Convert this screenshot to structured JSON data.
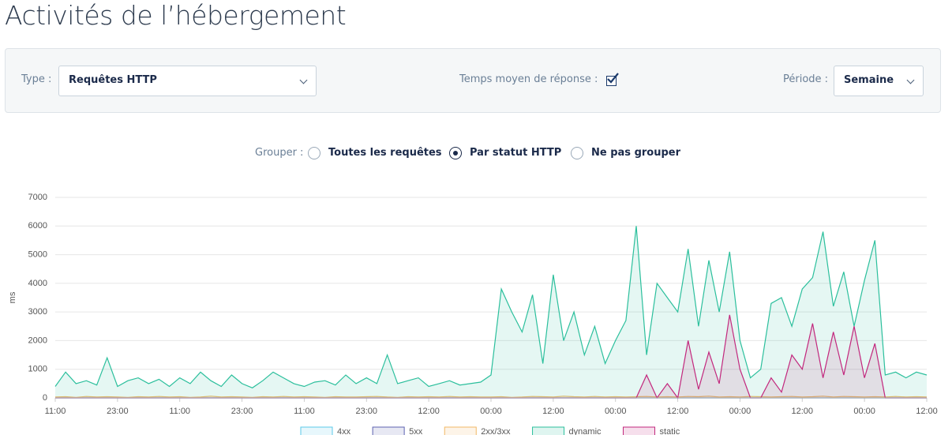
{
  "header": {
    "title": "Activités de l’hébergement"
  },
  "filters": {
    "type_label": "Type :",
    "type_value": "Requêtes HTTP",
    "response_label": "Temps moyen de réponse :",
    "response_checked": true,
    "period_label": "Période :",
    "period_value": "Semaine"
  },
  "grouping": {
    "label": "Grouper :",
    "options": [
      "Toutes les requêtes",
      "Par statut HTTP",
      "Ne pas grouper"
    ],
    "selected": 1
  },
  "chart_data": {
    "type": "area",
    "ylabel": "ms",
    "x": [
      0,
      2,
      4,
      6,
      8,
      10,
      12,
      14,
      16,
      18,
      20,
      22,
      24,
      26,
      28,
      30,
      32,
      34,
      36,
      38,
      40,
      42,
      44,
      46,
      48,
      50,
      52,
      54,
      56,
      58,
      60,
      62,
      64,
      66,
      68,
      70,
      72,
      74,
      76,
      78,
      80,
      82,
      84,
      86,
      88,
      90,
      92,
      94,
      96,
      98,
      100,
      102,
      104,
      106,
      108,
      110,
      112,
      114,
      116,
      118,
      120,
      122,
      124,
      126,
      128,
      130,
      132,
      134,
      136,
      138,
      140,
      142,
      144,
      146,
      148,
      150,
      152,
      154,
      156,
      158,
      160,
      162,
      164,
      166,
      168
    ],
    "xlim": [
      0,
      168
    ],
    "xticks": [
      {
        "value": 0,
        "label": "11:00"
      },
      {
        "value": 12,
        "label": "23:00"
      },
      {
        "value": 24,
        "label": "11:00"
      },
      {
        "value": 36,
        "label": "23:00"
      },
      {
        "value": 48,
        "label": "11:00"
      },
      {
        "value": 60,
        "label": "23:00"
      },
      {
        "value": 72,
        "label": "12:00"
      },
      {
        "value": 84,
        "label": "00:00"
      },
      {
        "value": 96,
        "label": "12:00"
      },
      {
        "value": 108,
        "label": "00:00"
      },
      {
        "value": 120,
        "label": "12:00"
      },
      {
        "value": 132,
        "label": "00:00"
      },
      {
        "value": 144,
        "label": "12:00"
      },
      {
        "value": 156,
        "label": "00:00"
      },
      {
        "value": 168,
        "label": "12:00"
      }
    ],
    "ylim": [
      0,
      7000
    ],
    "yticks": [
      0,
      1000,
      2000,
      3000,
      4000,
      5000,
      6000,
      7000
    ],
    "grid": true,
    "series": [
      {
        "name": "4xx",
        "color": "#5bc8e8",
        "values": [
          0,
          0,
          0,
          0,
          0,
          0,
          0,
          0,
          0,
          0,
          0,
          0,
          0,
          0,
          0,
          0,
          0,
          0,
          0,
          0,
          0,
          0,
          0,
          0,
          0,
          0,
          0,
          0,
          0,
          0,
          0,
          0,
          0,
          0,
          0,
          0,
          0,
          0,
          0,
          0,
          0,
          0,
          0,
          0,
          0,
          0,
          0,
          0,
          0,
          0,
          0,
          0,
          0,
          0,
          0,
          0,
          0,
          0,
          0,
          0,
          0,
          0,
          0,
          0,
          0,
          0,
          0,
          0,
          0,
          0,
          0,
          0,
          0,
          0,
          0,
          0,
          0,
          0,
          0,
          0,
          0,
          0,
          0,
          0,
          0
        ]
      },
      {
        "name": "5xx",
        "color": "#5c62b0",
        "values": [
          0,
          0,
          0,
          0,
          0,
          0,
          0,
          0,
          0,
          0,
          0,
          0,
          0,
          0,
          0,
          0,
          0,
          0,
          0,
          0,
          0,
          0,
          0,
          0,
          0,
          0,
          0,
          0,
          0,
          0,
          0,
          0,
          0,
          0,
          0,
          0,
          0,
          0,
          0,
          0,
          0,
          0,
          0,
          0,
          0,
          0,
          0,
          0,
          0,
          0,
          0,
          0,
          0,
          0,
          0,
          0,
          0,
          0,
          0,
          0,
          0,
          0,
          0,
          0,
          0,
          0,
          0,
          0,
          0,
          0,
          0,
          0,
          0,
          0,
          0,
          0,
          0,
          0,
          0,
          0,
          0,
          0,
          0,
          0,
          0
        ]
      },
      {
        "name": "2xx/3xx",
        "color": "#f2b866",
        "values": [
          30,
          40,
          20,
          50,
          30,
          40,
          30,
          20,
          40,
          30,
          50,
          30,
          40,
          20,
          30,
          60,
          30,
          40,
          30,
          20,
          40,
          30,
          50,
          30,
          40,
          30,
          20,
          40,
          30,
          30,
          40,
          50,
          30,
          20,
          40,
          30,
          40,
          30,
          50,
          30,
          40,
          30,
          30,
          40,
          20,
          30,
          50,
          40,
          30,
          60,
          40,
          30,
          50,
          30,
          40,
          30,
          40,
          50,
          30,
          40,
          30,
          50,
          40,
          60,
          30,
          40,
          30,
          50,
          40,
          30,
          40,
          50,
          30,
          40,
          60,
          30,
          50,
          40,
          30,
          40,
          30,
          50,
          30,
          40,
          30
        ]
      },
      {
        "name": "dynamic",
        "color": "#2bbf9c",
        "values": [
          400,
          900,
          500,
          600,
          450,
          1400,
          400,
          600,
          700,
          500,
          650,
          400,
          700,
          500,
          900,
          600,
          400,
          800,
          500,
          350,
          600,
          900,
          700,
          500,
          400,
          550,
          600,
          450,
          800,
          500,
          700,
          500,
          1500,
          500,
          600,
          700,
          400,
          500,
          600,
          450,
          500,
          550,
          800,
          3800,
          3000,
          2300,
          3600,
          1200,
          4300,
          2000,
          3000,
          1500,
          2500,
          1200,
          2000,
          2700,
          6000,
          1500,
          4000,
          3500,
          3000,
          5200,
          2500,
          4800,
          3000,
          5100,
          2000,
          700,
          1000,
          3300,
          3500,
          2500,
          3800,
          4200,
          5800,
          3200,
          4400,
          2500,
          4100,
          5500,
          800,
          900,
          700,
          900,
          800
        ]
      },
      {
        "name": "static",
        "color": "#c2277d",
        "values": [
          0,
          0,
          0,
          0,
          0,
          0,
          0,
          0,
          0,
          0,
          0,
          0,
          0,
          0,
          0,
          0,
          0,
          0,
          0,
          0,
          0,
          0,
          0,
          0,
          0,
          0,
          0,
          0,
          0,
          0,
          0,
          0,
          0,
          0,
          0,
          0,
          0,
          0,
          0,
          0,
          0,
          0,
          0,
          0,
          0,
          0,
          0,
          0,
          0,
          0,
          0,
          0,
          0,
          0,
          0,
          0,
          0,
          800,
          0,
          500,
          0,
          2000,
          300,
          1600,
          500,
          2900,
          1000,
          0,
          0,
          700,
          200,
          1500,
          1000,
          2600,
          700,
          2300,
          800,
          2500,
          700,
          1900,
          0,
          0,
          0,
          0,
          0
        ]
      }
    ]
  }
}
